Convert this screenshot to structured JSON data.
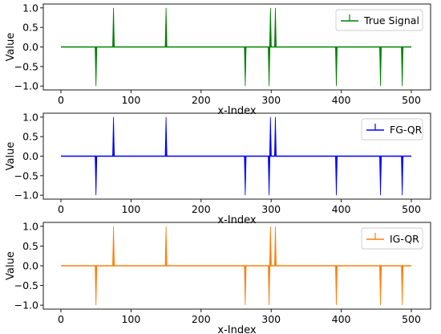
{
  "chart_data": [
    {
      "type": "line",
      "xlabel": "x-Index",
      "ylabel": "Value",
      "xlim": [
        0,
        500
      ],
      "ylim": [
        -1.0,
        1.0
      ],
      "xticks": [
        0,
        100,
        200,
        300,
        400,
        500
      ],
      "yticks": [
        1.0,
        0.5,
        0.0,
        -0.5,
        -1.0
      ],
      "ytick_labels": [
        "1.0",
        "0.5",
        "0.0",
        "−0.5",
        "−1.0"
      ],
      "legend": {
        "label": "True Signal",
        "placement": "top-right"
      },
      "series": [
        {
          "name": "True Signal",
          "color": "#008000",
          "spikes": [
            {
              "x": 50,
              "y": -1
            },
            {
              "x": 75,
              "y": 1
            },
            {
              "x": 150,
              "y": 1
            },
            {
              "x": 263,
              "y": -1
            },
            {
              "x": 297,
              "y": -1
            },
            {
              "x": 299,
              "y": 1
            },
            {
              "x": 306,
              "y": 1
            },
            {
              "x": 393,
              "y": -1
            },
            {
              "x": 456,
              "y": -1
            },
            {
              "x": 487,
              "y": -1
            }
          ]
        }
      ]
    },
    {
      "type": "line",
      "xlabel": "x-Index",
      "ylabel": "Value",
      "xlim": [
        0,
        500
      ],
      "ylim": [
        -1.0,
        1.0
      ],
      "xticks": [
        0,
        100,
        200,
        300,
        400,
        500
      ],
      "yticks": [
        1.0,
        0.5,
        0.0,
        -0.5,
        -1.0
      ],
      "ytick_labels": [
        "1.0",
        "0.5",
        "0.0",
        "−0.5",
        "−1.0"
      ],
      "legend": {
        "label": "FG-QR",
        "placement": "top-right"
      },
      "series": [
        {
          "name": "FG-QR",
          "color": "#0000ff",
          "spikes": [
            {
              "x": 50,
              "y": -1
            },
            {
              "x": 75,
              "y": 1
            },
            {
              "x": 150,
              "y": 1
            },
            {
              "x": 263,
              "y": -1
            },
            {
              "x": 297,
              "y": -1
            },
            {
              "x": 299,
              "y": 1
            },
            {
              "x": 306,
              "y": 1
            },
            {
              "x": 393,
              "y": -1
            },
            {
              "x": 456,
              "y": -1
            },
            {
              "x": 487,
              "y": -1
            }
          ]
        }
      ]
    },
    {
      "type": "line",
      "xlabel": "x-Index",
      "ylabel": "Value",
      "xlim": [
        0,
        500
      ],
      "ylim": [
        -1.0,
        1.0
      ],
      "xticks": [
        0,
        100,
        200,
        300,
        400,
        500
      ],
      "yticks": [
        1.0,
        0.5,
        0.0,
        -0.5,
        -1.0
      ],
      "ytick_labels": [
        "1.0",
        "0.5",
        "0.0",
        "−0.5",
        "−1.0"
      ],
      "legend": {
        "label": "IG-QR",
        "placement": "top-right"
      },
      "series": [
        {
          "name": "IG-QR",
          "color": "#ff7f0e",
          "spikes": [
            {
              "x": 50,
              "y": -1
            },
            {
              "x": 75,
              "y": 1
            },
            {
              "x": 150,
              "y": 1
            },
            {
              "x": 263,
              "y": -1
            },
            {
              "x": 297,
              "y": -1
            },
            {
              "x": 299,
              "y": 1
            },
            {
              "x": 306,
              "y": 1
            },
            {
              "x": 393,
              "y": -1
            },
            {
              "x": 456,
              "y": -1
            },
            {
              "x": 487,
              "y": -1
            }
          ]
        }
      ]
    }
  ]
}
